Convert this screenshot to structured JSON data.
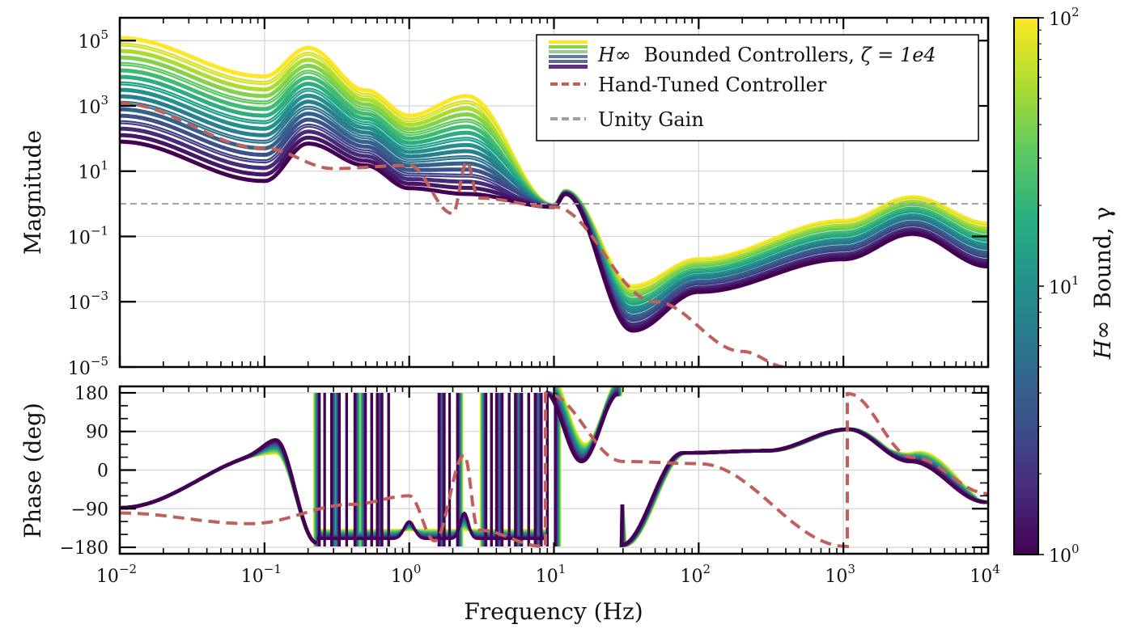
{
  "chart_data": [
    {
      "id": "magnitude",
      "type": "line",
      "xscale": "log",
      "yscale": "log",
      "xlim": [
        0.01,
        10000
      ],
      "ylim": [
        1e-05,
        500000
      ],
      "xlabel": "",
      "ylabel": "Magnitude",
      "grid": true,
      "ytick_labels": [
        {
          "value": 1e-05,
          "base": "10",
          "exp": "−5"
        },
        {
          "value": 0.001,
          "base": "10",
          "exp": "−3"
        },
        {
          "value": 0.1,
          "base": "10",
          "exp": "−1"
        },
        {
          "value": 10,
          "base": "10",
          "exp": "1"
        },
        {
          "value": 1000,
          "base": "10",
          "exp": "3"
        },
        {
          "value": 100000,
          "base": "10",
          "exp": "5"
        }
      ],
      "legend": {
        "placement": "top-right",
        "entries": [
          {
            "label_main": "Bounded Controllers, ",
            "label_math_prefix": "H∞",
            "label_math_suffix": "ζ = 1e4",
            "style": "viridis-band"
          },
          {
            "label": "Hand-Tuned Controller",
            "style": "dashed",
            "color": "#c0605c"
          },
          {
            "label": "Unity Gain",
            "style": "dashed",
            "color": "#a0a0a0"
          }
        ]
      },
      "series": [
        {
          "name": "H∞ Bounded Controllers (family, γ from 1 to 100)",
          "count": 17,
          "description": "Low-frequency gain scales with γ: at 0.01 Hz from ~80 (γ=1) to ~1e5 (γ=100); resonance peak near 0.2 Hz; notches near 2–5 Hz; crossover near 1 at ~10 Hz; minimum near 35 Hz (~1e-4 to ~2e-3); peak near 3 kHz (~0.2 to ~1.5)",
          "points": [
            {
              "f": 0.01,
              "mag_min": 80,
              "mag_max": 120000
            },
            {
              "f": 0.1,
              "mag_min": 5,
              "mag_max": 8000
            },
            {
              "f": 0.2,
              "mag_min": 70,
              "mag_max": 60000
            },
            {
              "f": 0.5,
              "mag_min": 15,
              "mag_max": 3000
            },
            {
              "f": 1.0,
              "mag_min": 3,
              "mag_max": 500
            },
            {
              "f": 2.5,
              "mag_min": 2,
              "mag_max": 2000
            },
            {
              "f": 10,
              "mag_min": 0.8,
              "mag_max": 0.9
            },
            {
              "f": 12,
              "mag_min": 2,
              "mag_max": 2.5
            },
            {
              "f": 35,
              "mag_min": 0.00013,
              "mag_max": 0.003
            },
            {
              "f": 100,
              "mag_min": 0.002,
              "mag_max": 0.02
            },
            {
              "f": 1000,
              "mag_min": 0.02,
              "mag_max": 0.3
            },
            {
              "f": 3000,
              "mag_min": 0.12,
              "mag_max": 1.6
            },
            {
              "f": 10000,
              "mag_min": 0.012,
              "mag_max": 0.25
            }
          ]
        },
        {
          "name": "Hand-Tuned Controller",
          "color": "#c0605c",
          "style": "dashed",
          "points": [
            {
              "f": 0.01,
              "mag": 1200
            },
            {
              "f": 0.1,
              "mag": 50
            },
            {
              "f": 0.3,
              "mag": 12
            },
            {
              "f": 1.0,
              "mag": 15
            },
            {
              "f": 2.0,
              "mag": 0.5
            },
            {
              "f": 2.5,
              "mag": 20
            },
            {
              "f": 3.0,
              "mag": 1.5
            },
            {
              "f": 10,
              "mag": 0.8
            },
            {
              "f": 50,
              "mag": 0.001
            },
            {
              "f": 200,
              "mag": 3e-05
            },
            {
              "f": 400,
              "mag": 1e-05
            }
          ]
        },
        {
          "name": "Unity Gain",
          "color": "#a0a0a0",
          "style": "dashed",
          "points": [
            {
              "f": 0.01,
              "mag": 1
            },
            {
              "f": 10000,
              "mag": 1
            }
          ]
        }
      ]
    },
    {
      "id": "phase",
      "type": "line",
      "xscale": "log",
      "xlim": [
        0.01,
        10000
      ],
      "ylim": [
        -195,
        195
      ],
      "xlabel": "Frequency (Hz)",
      "ylabel": "Phase (deg)",
      "grid": true,
      "ytick_labels": [
        "−180",
        "−90",
        "0",
        "90",
        "180"
      ],
      "ytick_values": [
        -180,
        -90,
        0,
        90,
        180
      ],
      "xtick_labels": [
        {
          "value": 0.01,
          "base": "10",
          "exp": "−2"
        },
        {
          "value": 0.1,
          "base": "10",
          "exp": "−1"
        },
        {
          "value": 1,
          "base": "10",
          "exp": "0"
        },
        {
          "value": 10,
          "base": "10",
          "exp": "1"
        },
        {
          "value": 100,
          "base": "10",
          "exp": "2"
        },
        {
          "value": 1000,
          "base": "10",
          "exp": "3"
        },
        {
          "value": 10000,
          "base": "10",
          "exp": "4"
        }
      ],
      "series": [
        {
          "name": "H∞ Bounded Controllers (family)",
          "description": "≈−90° at low freq, peak ~30–60° near 0.12 Hz, many ±180° wraps between 0.25 and 10 Hz, ~−180° wrap at 30 Hz, plateau ~40° at 100 Hz, peak ~95° near 1 kHz, down to ~−80° at 10 kHz",
          "points": [
            {
              "f": 0.01,
              "deg": -88
            },
            {
              "f": 0.12,
              "deg": 40
            },
            {
              "f": 0.23,
              "deg": -170
            },
            {
              "f": 1.05,
              "deg": -60
            },
            {
              "f": 2.3,
              "deg": 20
            },
            {
              "f": 9,
              "deg": 180
            },
            {
              "f": 16,
              "deg": 20
            },
            {
              "f": 29,
              "deg": 178
            },
            {
              "f": 30,
              "deg": -175
            },
            {
              "f": 80,
              "deg": 40
            },
            {
              "f": 300,
              "deg": 45
            },
            {
              "f": 1100,
              "deg": 95
            },
            {
              "f": 3000,
              "deg": 20
            },
            {
              "f": 10000,
              "deg": -75
            }
          ]
        },
        {
          "name": "Hand-Tuned Controller",
          "color": "#c0605c",
          "style": "dashed",
          "points": [
            {
              "f": 0.01,
              "deg": -100
            },
            {
              "f": 0.08,
              "deg": -125
            },
            {
              "f": 0.4,
              "deg": -80
            },
            {
              "f": 1.0,
              "deg": -60
            },
            {
              "f": 1.5,
              "deg": -165
            },
            {
              "f": 2.4,
              "deg": 35
            },
            {
              "f": 3.0,
              "deg": -140
            },
            {
              "f": 8.5,
              "deg": -178
            },
            {
              "f": 9,
              "deg": 178
            },
            {
              "f": 30,
              "deg": 20
            },
            {
              "f": 100,
              "deg": 15
            },
            {
              "f": 1050,
              "deg": -178
            },
            {
              "f": 1080,
              "deg": 178
            },
            {
              "f": 3000,
              "deg": 30
            },
            {
              "f": 10000,
              "deg": -55
            }
          ]
        }
      ]
    },
    {
      "id": "colorbar",
      "type": "heatmap",
      "colormap": "viridis",
      "scale": "log",
      "range": [
        1,
        100
      ],
      "label_math": "H∞",
      "label_text": "Bound, γ",
      "tick_labels": [
        {
          "value": 1,
          "base": "10",
          "exp": "0"
        },
        {
          "value": 10,
          "base": "10",
          "exp": "1"
        },
        {
          "value": 100,
          "base": "10",
          "exp": "2"
        }
      ]
    }
  ],
  "colors": {
    "hand_tuned": "#c0605c",
    "unity": "#a0a0a0",
    "viridis_low": "#440154",
    "viridis_high": "#fde725"
  }
}
